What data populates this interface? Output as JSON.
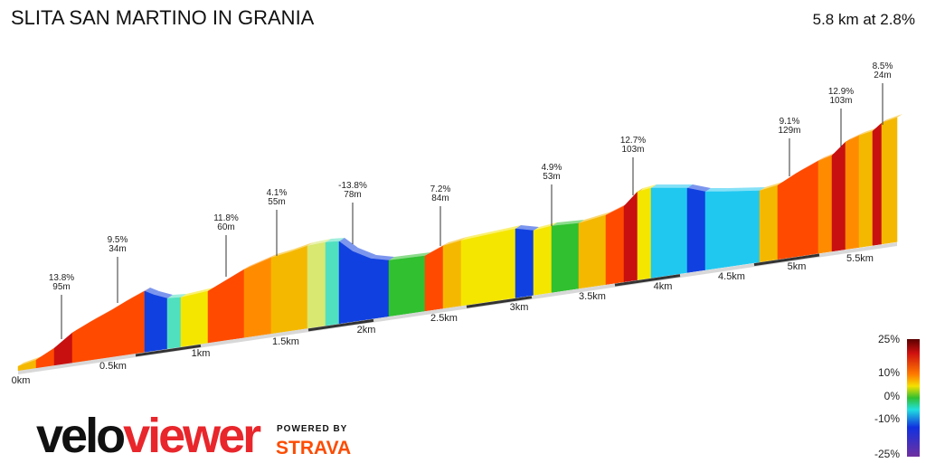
{
  "title": "SLITA SAN MARTINO IN GRANIA",
  "summary": "5.8 km at 2.8%",
  "annotations": [
    {
      "grade": "13.8%",
      "length": "95m"
    },
    {
      "grade": "9.5%",
      "length": "34m"
    },
    {
      "grade": "11.8%",
      "length": "60m"
    },
    {
      "grade": "4.1%",
      "length": "55m"
    },
    {
      "grade": "-13.8%",
      "length": "78m"
    },
    {
      "grade": "7.2%",
      "length": "84m"
    },
    {
      "grade": "4.9%",
      "length": "53m"
    },
    {
      "grade": "12.7%",
      "length": "103m"
    },
    {
      "grade": "9.1%",
      "length": "129m"
    },
    {
      "grade": "12.9%",
      "length": "103m"
    },
    {
      "grade": "8.5%",
      "length": "24m"
    }
  ],
  "distance_labels": [
    "0km",
    "0.5km",
    "1km",
    "1.5km",
    "2km",
    "2.5km",
    "3km",
    "3.5km",
    "4km",
    "4.5km",
    "5km",
    "5.5km"
  ],
  "legend": {
    "labels": [
      "25%",
      "10%",
      "0%",
      "-10%",
      "-25%"
    ]
  },
  "logo": {
    "velo": "velo",
    "viewer": "viewer",
    "powered_by": "POWERED BY",
    "partner": "STRAVA"
  }
}
